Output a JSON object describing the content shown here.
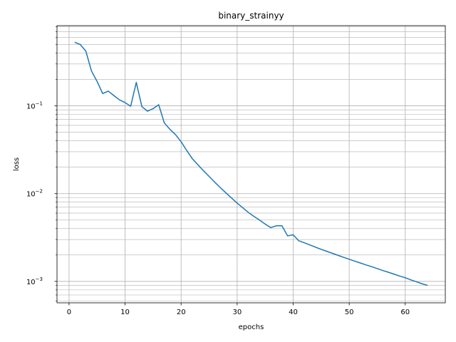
{
  "chart_data": {
    "type": "line",
    "title": "binary_strainyy",
    "xlabel": "epochs",
    "ylabel": "loss",
    "yscale": "log",
    "xlim": [
      -2.15,
      67.15
    ],
    "ylim": [
      0.00057,
      0.82
    ],
    "grid": "major and minor",
    "x_ticks": [
      0,
      10,
      20,
      30,
      40,
      50,
      60
    ],
    "y_ticks": [
      {
        "value": 0.001,
        "base": "10",
        "exp": "−3"
      },
      {
        "value": 0.01,
        "base": "10",
        "exp": "−2"
      },
      {
        "value": 0.1,
        "base": "10",
        "exp": "−1"
      }
    ],
    "series": [
      {
        "color": "#1f77b4",
        "x": [
          1,
          2,
          3,
          4,
          5,
          6,
          7,
          8,
          9,
          10,
          11,
          12,
          13,
          14,
          15,
          16,
          17,
          18,
          19,
          20,
          21,
          22,
          23,
          24,
          25,
          26,
          27,
          28,
          29,
          30,
          31,
          32,
          33,
          34,
          35,
          36,
          37,
          38,
          39,
          40,
          41,
          42,
          43,
          44,
          45,
          46,
          47,
          48,
          49,
          50,
          51,
          52,
          53,
          54,
          55,
          56,
          57,
          58,
          59,
          60,
          61,
          62,
          63,
          64
        ],
        "y": [
          0.53,
          0.5,
          0.42,
          0.25,
          0.19,
          0.138,
          0.147,
          0.131,
          0.117,
          0.109,
          0.099,
          0.185,
          0.098,
          0.087,
          0.093,
          0.103,
          0.064,
          0.054,
          0.047,
          0.039,
          0.031,
          0.025,
          0.0213,
          0.0182,
          0.0157,
          0.0135,
          0.0117,
          0.0102,
          0.0089,
          0.0078,
          0.0069,
          0.0061,
          0.0055,
          0.005,
          0.0045,
          0.0041,
          0.0043,
          0.0043,
          0.0033,
          0.0034,
          0.0029,
          0.00275,
          0.0026,
          0.00245,
          0.00232,
          0.0022,
          0.00209,
          0.00198,
          0.00188,
          0.00179,
          0.0017,
          0.00162,
          0.00154,
          0.00147,
          0.0014,
          0.00133,
          0.00127,
          0.00121,
          0.00115,
          0.0011,
          0.00104,
          0.00099,
          0.00094,
          0.0009
        ]
      }
    ]
  }
}
